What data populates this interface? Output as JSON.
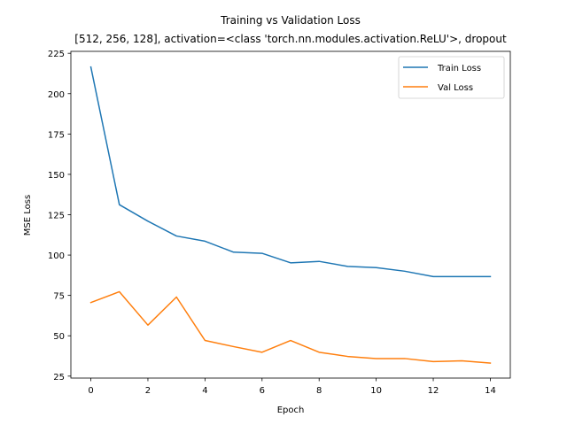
{
  "chart_data": {
    "type": "line",
    "title": "Training vs Validation Loss",
    "subtitle": "[512, 256, 128], activation=<class 'torch.nn.modules.activation.ReLU'>, dropout",
    "xlabel": "Epoch",
    "ylabel": "MSE Loss",
    "xlim": [
      -0.7,
      14.7
    ],
    "ylim": [
      23.8,
      226.2
    ],
    "xticks": [
      0,
      2,
      4,
      6,
      8,
      10,
      12,
      14
    ],
    "yticks": [
      25,
      50,
      75,
      100,
      125,
      150,
      175,
      200,
      225
    ],
    "grid": false,
    "legend_position": "top-right",
    "x": [
      0,
      1,
      2,
      3,
      4,
      5,
      6,
      7,
      8,
      9,
      10,
      11,
      12,
      13,
      14
    ],
    "series": [
      {
        "name": "Train Loss",
        "color": "#1f77b4",
        "values": [
          216.5,
          131.2,
          121.0,
          111.8,
          108.6,
          101.8,
          101.1,
          95.2,
          96.1,
          93.0,
          92.2,
          90.0,
          86.7,
          86.7,
          86.7
        ]
      },
      {
        "name": "Val Loss",
        "color": "#ff7f0e",
        "values": [
          70.6,
          77.3,
          56.6,
          74.0,
          47.1,
          43.3,
          39.8,
          47.1,
          39.8,
          37.2,
          35.9,
          35.9,
          34.0,
          34.5,
          33.1
        ]
      }
    ]
  }
}
